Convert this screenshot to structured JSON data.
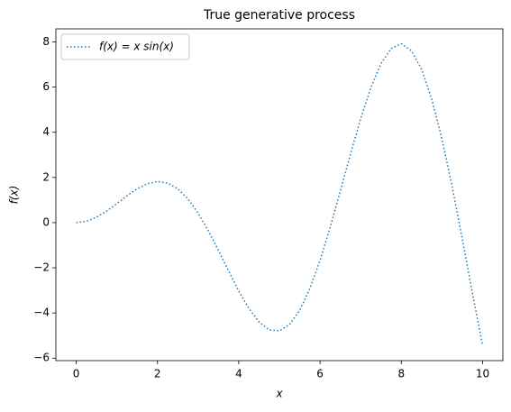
{
  "chart_data": {
    "type": "line",
    "title": "True generative process",
    "x_label": "x",
    "y_label": "f(x)",
    "x": [
      0,
      0.25,
      0.5,
      0.75,
      1,
      1.25,
      1.5,
      1.75,
      2,
      2.25,
      2.5,
      2.75,
      3,
      3.25,
      3.5,
      3.75,
      4,
      4.25,
      4.5,
      4.75,
      5,
      5.25,
      5.5,
      5.75,
      6,
      6.25,
      6.5,
      6.75,
      7,
      7.25,
      7.5,
      7.75,
      8,
      8.25,
      8.5,
      8.75,
      9,
      9.25,
      9.5,
      9.75,
      10
    ],
    "series": [
      {
        "name": "f(x) = x sin(x)",
        "color": "#1f77b4",
        "line_style": "dotted",
        "values": [
          0,
          0.06,
          0.24,
          0.51,
          0.84,
          1.19,
          1.5,
          1.72,
          1.82,
          1.75,
          1.5,
          1.05,
          0.42,
          -0.35,
          -1.23,
          -2.14,
          -3.03,
          -3.8,
          -4.4,
          -4.75,
          -4.79,
          -4.51,
          -3.88,
          -2.92,
          -1.68,
          -0.21,
          1.4,
          3.04,
          4.6,
          5.97,
          7.04,
          7.71,
          7.92,
          7.61,
          6.79,
          5.47,
          3.71,
          1.61,
          -0.71,
          -3.12,
          -5.44
        ]
      }
    ],
    "xlim": [
      -0.5,
      10.5
    ],
    "ylim": [
      -6.11,
      8.58
    ],
    "xticks": [
      0,
      2,
      4,
      6,
      8,
      10
    ],
    "yticks": [
      {
        "value": -6,
        "label": "−6"
      },
      {
        "value": -4,
        "label": "−4"
      },
      {
        "value": -2,
        "label": "−2"
      },
      0,
      2,
      4,
      6,
      8
    ],
    "legend": "upper left",
    "grid": false
  }
}
